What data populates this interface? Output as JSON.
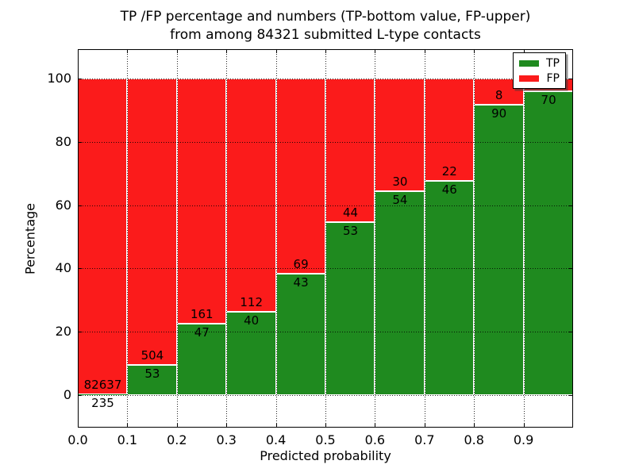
{
  "chart_data": {
    "type": "bar",
    "variant": "stacked-percentage",
    "title_lines": [
      "TP /FP percentage and numbers (TP-bottom value, FP-upper)",
      "from among 84321 submitted L-type contacts"
    ],
    "xlabel": "Predicted probability",
    "ylabel": "Percentage",
    "x_tick_labels": [
      "0.0",
      "0.1",
      "0.2",
      "0.3",
      "0.4",
      "0.5",
      "0.6",
      "0.7",
      "0.8",
      "0.9"
    ],
    "y_ticks": [
      0,
      20,
      40,
      60,
      80,
      100
    ],
    "y_tick_labels": [
      "0",
      "20",
      "40",
      "60",
      "80",
      "100"
    ],
    "xlim": [
      0.0,
      1.0
    ],
    "ylim": [
      -10.3,
      109.6
    ],
    "grid": "dotted, on both axes",
    "total_submitted": 84321,
    "legend": {
      "position": "upper right",
      "entries": [
        {
          "label": "TP",
          "color": "#1f8a1f"
        },
        {
          "label": "FP",
          "color": "#fb1b1b"
        }
      ]
    },
    "colors": {
      "tp": "#1f8a1f",
      "fp": "#fb1b1b",
      "bar_edge": "#ffffff"
    },
    "bins": [
      {
        "range": [
          0.0,
          0.1
        ],
        "tp": 235,
        "fp": 82637,
        "tp_pct": 0.3
      },
      {
        "range": [
          0.1,
          0.2
        ],
        "tp": 53,
        "fp": 504,
        "tp_pct": 9.5
      },
      {
        "range": [
          0.2,
          0.3
        ],
        "tp": 47,
        "fp": 161,
        "tp_pct": 22.6
      },
      {
        "range": [
          0.3,
          0.4
        ],
        "tp": 40,
        "fp": 112,
        "tp_pct": 26.3
      },
      {
        "range": [
          0.4,
          0.5
        ],
        "tp": 43,
        "fp": 69,
        "tp_pct": 38.4
      },
      {
        "range": [
          0.5,
          0.6
        ],
        "tp": 53,
        "fp": 44,
        "tp_pct": 54.6
      },
      {
        "range": [
          0.6,
          0.7
        ],
        "tp": 54,
        "fp": 30,
        "tp_pct": 64.3
      },
      {
        "range": [
          0.7,
          0.8
        ],
        "tp": 46,
        "fp": 22,
        "tp_pct": 67.6
      },
      {
        "range": [
          0.8,
          0.9
        ],
        "tp": 90,
        "fp": 8,
        "tp_pct": 91.8
      },
      {
        "range": [
          0.9,
          1.0
        ],
        "tp": 70,
        "fp": null,
        "tp_pct": 96.0,
        "fp_label_note": "FP count label hidden behind legend"
      }
    ],
    "note": "Each bar stacks TP (green, bottom) + FP (red, top) to 100%. TP count printed below the TP/FP boundary, FP count printed above it."
  }
}
